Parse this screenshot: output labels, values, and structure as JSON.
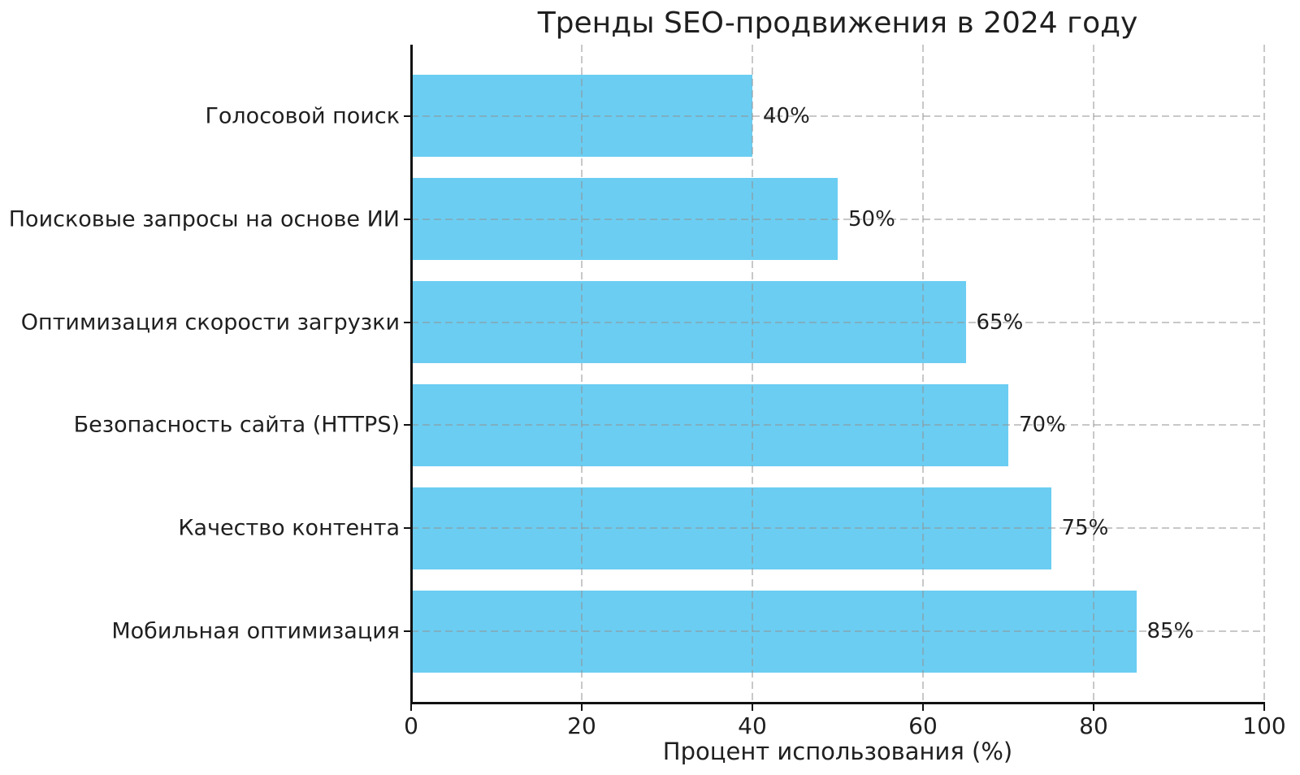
{
  "chart_data": {
    "type": "bar",
    "orientation": "horizontal",
    "title": "Тренды SEO-продвижения в 2024 году",
    "xlabel": "Процент использования (%)",
    "ylabel": "",
    "categories": [
      "Голосовой поиск",
      "Поисковые запросы на основе ИИ",
      "Оптимизация скорости загрузки",
      "Безопасность сайта (HTTPS)",
      "Качество контента",
      "Мобильная оптимизация"
    ],
    "values": [
      40,
      50,
      65,
      70,
      75,
      85
    ],
    "value_labels": [
      "40%",
      "50%",
      "65%",
      "70%",
      "75%",
      "85%"
    ],
    "xlim": [
      0,
      100
    ],
    "xticks": [
      0,
      20,
      40,
      60,
      80,
      100
    ],
    "grid": "dashed, drawn above bars",
    "legend": "none",
    "bar_color": "#6bcdf2",
    "grid_color": "#919191",
    "axis_color": "#111111",
    "text_color": "#1f1f1f",
    "background_color": "#ffffff"
  }
}
